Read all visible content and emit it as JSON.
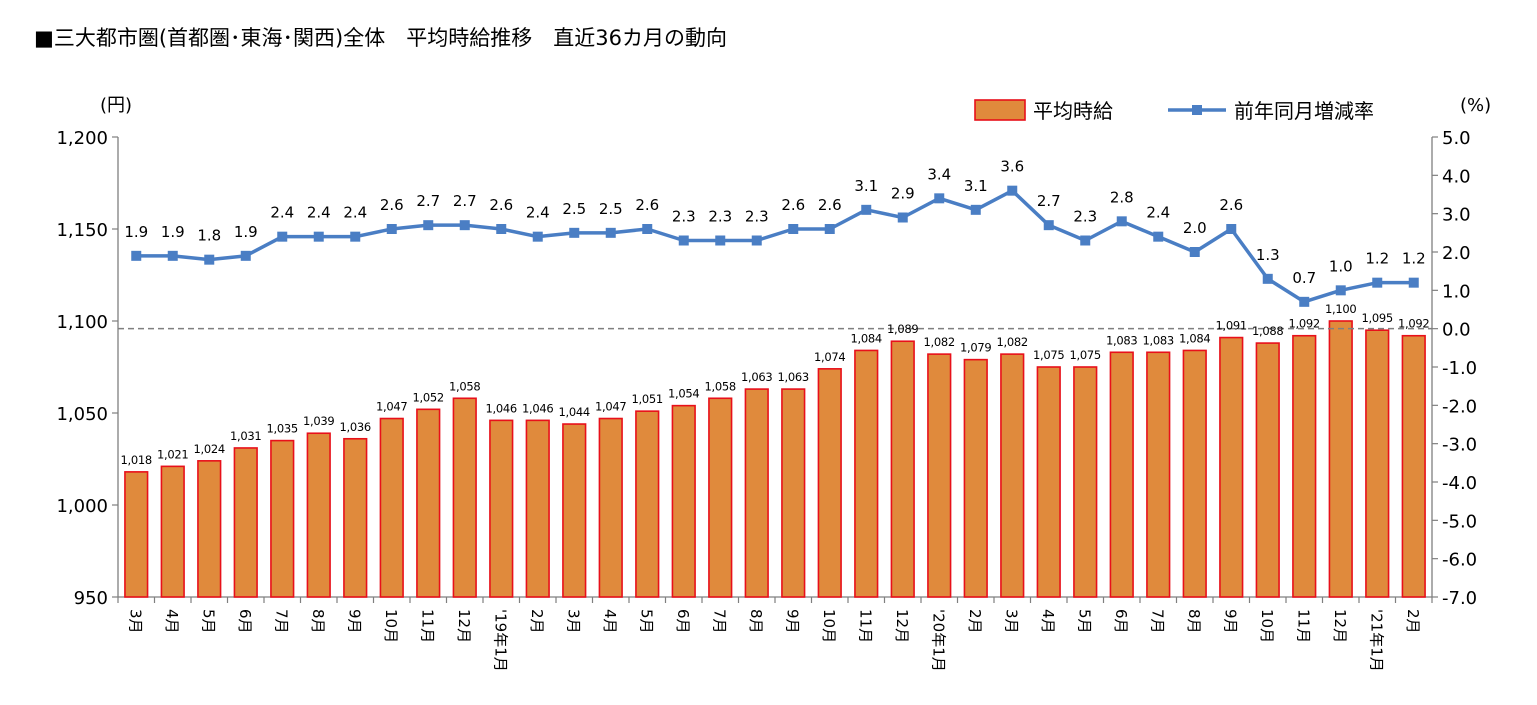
{
  "title": "■三大都市圏(首都圏･東海･関西)全体　平均時給推移　直近36カ月の動向",
  "colors": {
    "bar_fill": "#e08a3c",
    "bar_stroke": "#e8101a",
    "line": "#4a7ec4",
    "zero_line": "#7f7f7f",
    "axis": "#7f7f7f"
  },
  "chart_data": {
    "type": "bar+line",
    "categories": [
      "3月",
      "4月",
      "5月",
      "6月",
      "7月",
      "8月",
      "9月",
      "10月",
      "11月",
      "12月",
      "'19年1月",
      "2月",
      "3月",
      "4月",
      "5月",
      "6月",
      "7月",
      "8月",
      "9月",
      "10月",
      "11月",
      "12月",
      "'20年1月",
      "2月",
      "3月",
      "4月",
      "5月",
      "6月",
      "7月",
      "8月",
      "9月",
      "10月",
      "11月",
      "12月",
      "'21年1月",
      "2月"
    ],
    "series": [
      {
        "name": "平均時給",
        "type": "bar",
        "axis": "left",
        "values": [
          1018,
          1021,
          1024,
          1031,
          1035,
          1039,
          1036,
          1047,
          1052,
          1058,
          1046,
          1046,
          1044,
          1047,
          1051,
          1054,
          1058,
          1063,
          1063,
          1074,
          1084,
          1089,
          1082,
          1079,
          1082,
          1075,
          1075,
          1083,
          1083,
          1084,
          1091,
          1088,
          1092,
          1100,
          1095,
          1092
        ],
        "labels": [
          "1,018",
          "1,021",
          "1,024",
          "1,031",
          "1,035",
          "1,039",
          "1,036",
          "1,047",
          "1,052",
          "1,058",
          "1,046",
          "1,046",
          "1,044",
          "1,047",
          "1,051",
          "1,054",
          "1,058",
          "1,063",
          "1,063",
          "1,074",
          "1,084",
          "1,089",
          "1,082",
          "1,079",
          "1,082",
          "1,075",
          "1,075",
          "1,083",
          "1,083",
          "1,084",
          "1,091",
          "1,088",
          "1,092",
          "1,100",
          "1,095",
          "1,092"
        ]
      },
      {
        "name": "前年同月増減率",
        "type": "line",
        "axis": "right",
        "values": [
          1.9,
          1.9,
          1.8,
          1.9,
          2.4,
          2.4,
          2.4,
          2.6,
          2.7,
          2.7,
          2.6,
          2.4,
          2.5,
          2.5,
          2.6,
          2.3,
          2.3,
          2.3,
          2.6,
          2.6,
          3.1,
          2.9,
          3.4,
          3.1,
          3.6,
          2.7,
          2.3,
          2.8,
          2.4,
          2.0,
          2.6,
          1.3,
          0.7,
          1.0,
          1.2,
          1.2
        ],
        "labels": [
          "1.9",
          "1.9",
          "1.8",
          "1.9",
          "2.4",
          "2.4",
          "2.4",
          "2.6",
          "2.7",
          "2.7",
          "2.6",
          "2.4",
          "2.5",
          "2.5",
          "2.6",
          "2.3",
          "2.3",
          "2.3",
          "2.6",
          "2.6",
          "3.1",
          "2.9",
          "3.4",
          "3.1",
          "3.6",
          "2.7",
          "2.3",
          "2.8",
          "2.4",
          "2.0",
          "2.6",
          "1.3",
          "0.7",
          "1.0",
          "1.2",
          "1.2"
        ]
      }
    ],
    "y_left": {
      "unit": "(円)",
      "ylim": [
        950,
        1200
      ],
      "ticks": [
        950,
        1000,
        1050,
        1100,
        1150,
        1200
      ],
      "tick_labels": [
        "950",
        "1,000",
        "1,050",
        "1,100",
        "1,150",
        "1,200"
      ]
    },
    "y_right": {
      "unit": "(%)",
      "ylim": [
        -7.0,
        5.0
      ],
      "ticks": [
        -7,
        -6,
        -5,
        -4,
        -3,
        -2,
        -1,
        0,
        1,
        2,
        3,
        4,
        5
      ],
      "tick_labels": [
        "-7.0",
        "-6.0",
        "-5.0",
        "-4.0",
        "-3.0",
        "-2.0",
        "-1.0",
        "0.0",
        "1.0",
        "2.0",
        "3.0",
        "4.0",
        "5.0"
      ]
    },
    "legend": {
      "position": "top-right",
      "items": [
        "平均時給",
        "前年同月増減率"
      ]
    },
    "reference_line": {
      "axis": "right",
      "value": 0.0,
      "style": "dashed"
    },
    "grid": false
  }
}
